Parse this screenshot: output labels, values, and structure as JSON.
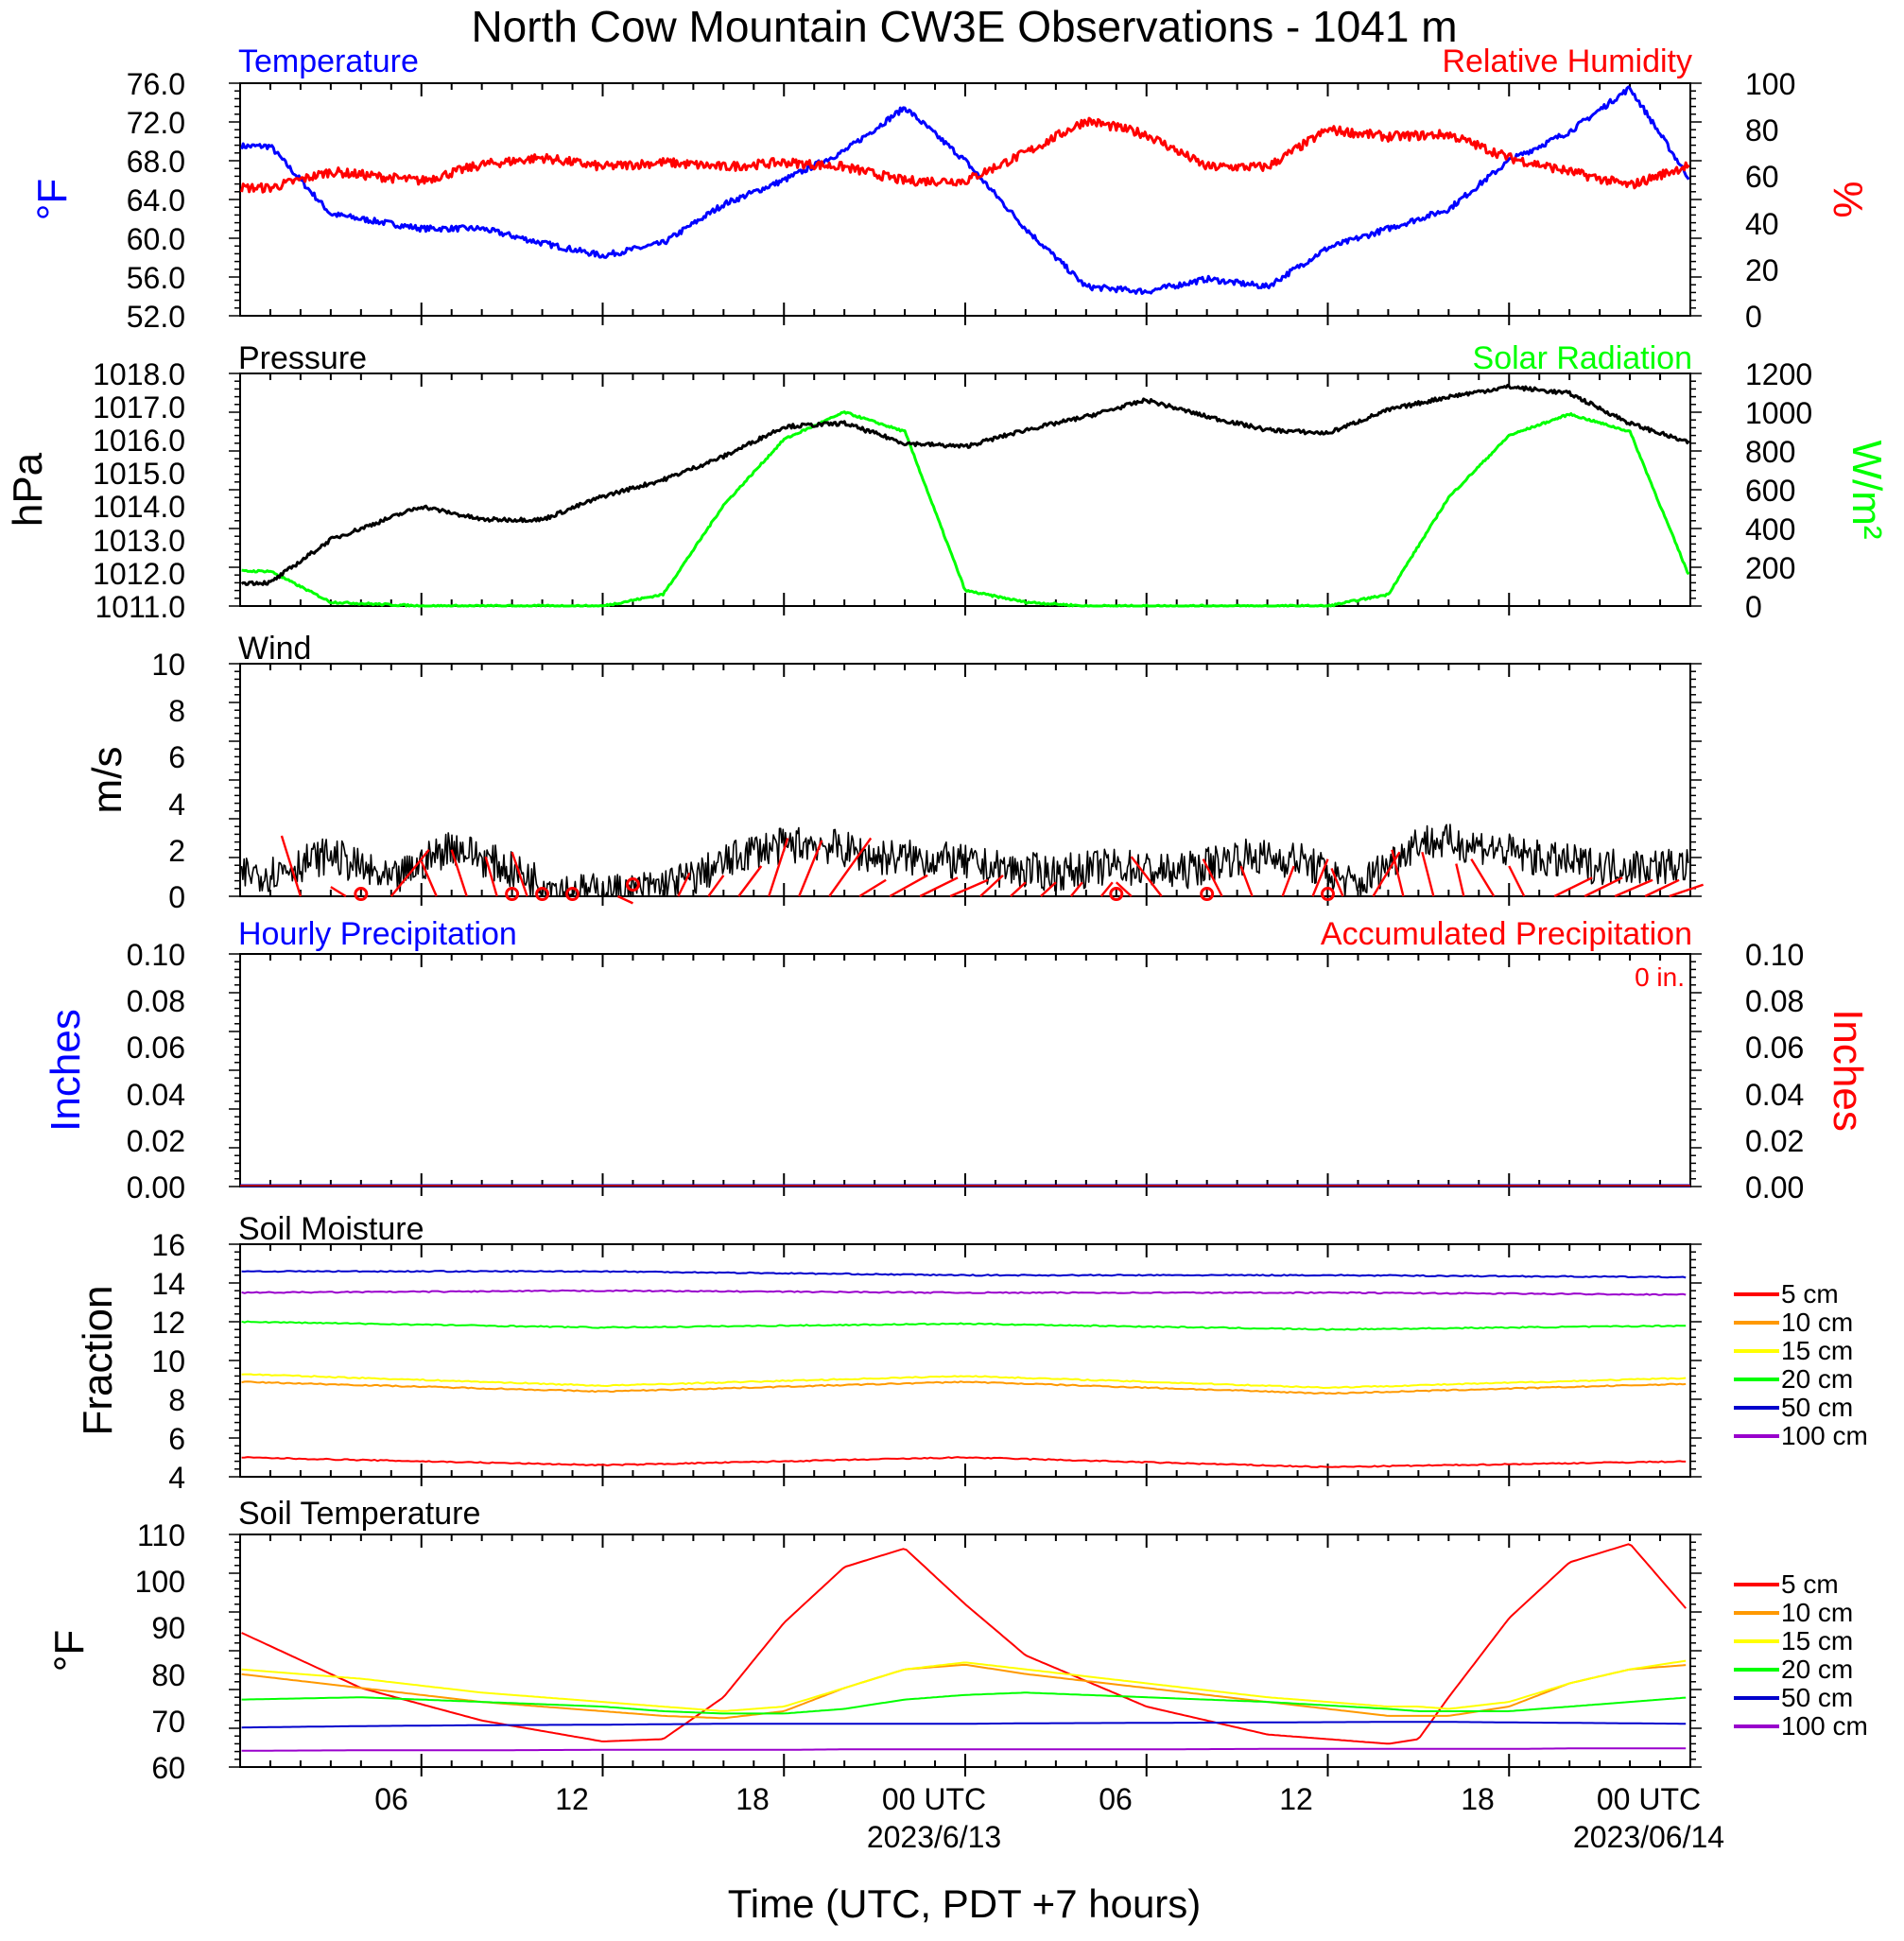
{
  "title": "North Cow Mountain CW3E Observations - 1041 m",
  "x_axis": {
    "label": "Time (UTC, PDT +7 hours)",
    "ticks": [
      "06",
      "12",
      "18",
      "00 UTC",
      "06",
      "12",
      "18",
      "00 UTC"
    ],
    "dates": [
      "2023/6/13",
      "2023/06/14"
    ]
  },
  "colors": {
    "red": "#ff0000",
    "blue": "#0000ff",
    "green": "#00ff00",
    "black": "#000000",
    "orange": "#ff9900",
    "yellow": "#ffff00",
    "darkblue": "#0000cc",
    "purple": "#9900cc"
  },
  "panels": {
    "temp_rh": {
      "left_title": "Temperature",
      "right_title": "Relative Humidity",
      "left_unit": "°F",
      "right_unit": "%",
      "left_ticks": [
        "76.0",
        "72.0",
        "68.0",
        "64.0",
        "60.0",
        "56.0",
        "52.0"
      ],
      "right_ticks": [
        "100",
        "80",
        "60",
        "40",
        "20",
        "0"
      ]
    },
    "pressure_solar": {
      "left_title": "Pressure",
      "right_title": "Solar Radiation",
      "left_unit": "hPa",
      "right_unit": "W/m²",
      "left_ticks": [
        "1018.0",
        "1017.0",
        "1016.0",
        "1015.0",
        "1014.0",
        "1013.0",
        "1012.0",
        "1011.0"
      ],
      "right_ticks": [
        "1200",
        "1000",
        "800",
        "600",
        "400",
        "200",
        "0"
      ]
    },
    "wind": {
      "title": "Wind",
      "unit": "m/s",
      "ticks": [
        "10",
        "8",
        "6",
        "4",
        "2",
        "0"
      ]
    },
    "precip": {
      "left_title": "Hourly Precipitation",
      "right_title": "Accumulated Precipitation",
      "total_label": "0 in.",
      "left_unit": "Inches",
      "right_unit": "Inches",
      "ticks": [
        "0.10",
        "0.08",
        "0.06",
        "0.04",
        "0.02",
        "0.00"
      ]
    },
    "soil_moisture": {
      "title": "Soil Moisture",
      "unit": "Fraction",
      "ticks": [
        "16",
        "14",
        "12",
        "10",
        "8",
        "6",
        "4"
      ],
      "legend": [
        "5 cm",
        "10 cm",
        "15 cm",
        "20 cm",
        "50 cm",
        "100 cm"
      ]
    },
    "soil_temp": {
      "title": "Soil Temperature",
      "unit": "°F",
      "ticks": [
        "110",
        "100",
        "90",
        "80",
        "70",
        "60"
      ],
      "legend": [
        "5 cm",
        "10 cm",
        "15 cm",
        "20 cm",
        "50 cm",
        "100 cm"
      ]
    }
  },
  "chart_data": [
    {
      "type": "line",
      "title": "Temperature / Relative Humidity",
      "x": [
        1,
        3,
        6,
        8,
        10,
        12,
        14,
        16,
        18,
        20,
        22,
        24,
        26,
        28,
        30,
        32,
        34,
        36,
        38,
        40,
        42,
        44,
        46,
        48
      ],
      "series": [
        {
          "name": "Temperature",
          "axis": "left",
          "color": "#0000ff",
          "ylim": [
            52,
            76
          ],
          "values": [
            69.5,
            62.5,
            61,
            61,
            59.5,
            58.2,
            59.5,
            63.5,
            66,
            69,
            73.5,
            68,
            61,
            55,
            54.5,
            55.8,
            55,
            59,
            61,
            63,
            68,
            71,
            75.5,
            66
          ]
        },
        {
          "name": "Relative Humidity",
          "axis": "right",
          "color": "#ff0000",
          "ylim": [
            0,
            100
          ],
          "values": [
            55,
            62,
            58,
            65,
            68,
            64,
            66,
            64,
            66,
            64,
            58,
            58,
            70,
            84,
            78,
            64,
            64,
            80,
            77,
            78,
            68,
            62,
            56,
            65
          ]
        }
      ]
    },
    {
      "type": "line",
      "title": "Pressure / Solar Radiation",
      "x": [
        1,
        3,
        6,
        8,
        10,
        12,
        14,
        16,
        18,
        20,
        22,
        24,
        26,
        28,
        30,
        32,
        34,
        36,
        38,
        40,
        42,
        44,
        46,
        48
      ],
      "series": [
        {
          "name": "Pressure",
          "axis": "left",
          "color": "#000000",
          "ylim": [
            1011,
            1018
          ],
          "values": [
            1011.7,
            1013.0,
            1014.0,
            1013.6,
            1013.6,
            1014.3,
            1014.8,
            1015.5,
            1016.4,
            1016.5,
            1015.9,
            1015.8,
            1016.3,
            1016.7,
            1017.2,
            1016.7,
            1016.3,
            1016.2,
            1016.9,
            1017.3,
            1017.6,
            1017.4,
            1016.5,
            1015.9
          ]
        },
        {
          "name": "Solar Radiation",
          "axis": "right",
          "color": "#00ff00",
          "ylim": [
            0,
            1200
          ],
          "values": [
            180,
            20,
            0,
            0,
            0,
            0,
            60,
            520,
            860,
            1000,
            900,
            80,
            20,
            0,
            0,
            0,
            0,
            0,
            60,
            560,
            880,
            990,
            900,
            140
          ]
        }
      ]
    },
    {
      "type": "line",
      "title": "Wind",
      "ylim": [
        0,
        10
      ],
      "x": [
        1,
        3,
        5,
        7,
        9,
        11,
        13,
        15,
        17,
        19,
        21,
        23,
        25,
        27,
        29,
        31,
        33,
        35,
        37,
        39,
        41,
        43,
        45,
        48
      ],
      "series": [
        {
          "name": "Wind speed",
          "color": "#000000",
          "values": [
            1.0,
            1.8,
            0.6,
            2.2,
            1.1,
            0.2,
            0.2,
            0.8,
            2.0,
            2.3,
            1.7,
            1.6,
            1.2,
            1.0,
            1.3,
            1.0,
            1.7,
            1.6,
            0.4,
            2.4,
            2.2,
            1.6,
            1.3,
            1.3
          ]
        }
      ]
    },
    {
      "type": "line",
      "title": "Hourly / Accumulated Precipitation",
      "ylim": [
        0,
        0.1
      ],
      "x": [
        0,
        48
      ],
      "series": [
        {
          "name": "Hourly Precipitation",
          "color": "#0000ff",
          "values": [
            0,
            0
          ]
        },
        {
          "name": "Accumulated Precipitation",
          "color": "#ff0000",
          "values": [
            0,
            0
          ]
        }
      ]
    },
    {
      "type": "line",
      "title": "Soil Moisture",
      "ylim": [
        4,
        16
      ],
      "x": [
        0,
        12,
        24,
        36,
        48
      ],
      "series": [
        {
          "name": "5 cm",
          "color": "#ff0000",
          "values": [
            5.0,
            4.6,
            5.0,
            4.5,
            4.8
          ]
        },
        {
          "name": "10 cm",
          "color": "#ff9900",
          "values": [
            8.9,
            8.4,
            8.9,
            8.3,
            8.8
          ]
        },
        {
          "name": "15 cm",
          "color": "#ffff00",
          "values": [
            9.3,
            8.7,
            9.2,
            8.6,
            9.1
          ]
        },
        {
          "name": "20 cm",
          "color": "#00ff00",
          "values": [
            12.0,
            11.7,
            11.9,
            11.6,
            11.8
          ]
        },
        {
          "name": "50 cm",
          "color": "#0000cc",
          "values": [
            14.6,
            14.6,
            14.4,
            14.4,
            14.3
          ]
        },
        {
          "name": "100 cm",
          "color": "#9900cc",
          "values": [
            13.5,
            13.6,
            13.5,
            13.5,
            13.4
          ]
        }
      ]
    },
    {
      "type": "line",
      "title": "Soil Temperature",
      "ylim": [
        60,
        110
      ],
      "x": [
        0,
        4,
        8,
        12,
        14,
        16,
        18,
        20,
        22,
        24,
        26,
        30,
        34,
        38,
        39,
        40,
        42,
        44,
        46,
        48
      ],
      "series": [
        {
          "name": "5 cm",
          "color": "#ff0000",
          "values": [
            89,
            77,
            70,
            65.5,
            66,
            75,
            91,
            103,
            107,
            95,
            84,
            73,
            67,
            65,
            66,
            75,
            92,
            104,
            108,
            93
          ]
        },
        {
          "name": "10 cm",
          "color": "#ff9900",
          "values": [
            80,
            77,
            74,
            72,
            71,
            70.5,
            72,
            77,
            81,
            82,
            80,
            77,
            74,
            71,
            71,
            71,
            73,
            78,
            81,
            82
          ]
        },
        {
          "name": "15 cm",
          "color": "#ffff00",
          "values": [
            81,
            79,
            76,
            74,
            73,
            72,
            73,
            77,
            81,
            82.5,
            81,
            78,
            75,
            73,
            73,
            72.5,
            74,
            78,
            81,
            83
          ]
        },
        {
          "name": "20 cm",
          "color": "#00ff00",
          "values": [
            74.5,
            75,
            74,
            73,
            72,
            71.5,
            71.5,
            72.5,
            74.5,
            75.5,
            76,
            75,
            74,
            72.5,
            72,
            72,
            72,
            73,
            74,
            75
          ]
        },
        {
          "name": "50 cm",
          "color": "#0000cc",
          "values": [
            68.5,
            68.8,
            69,
            69.1,
            69.2,
            69.3,
            69.3,
            69.3,
            69.3,
            69.3,
            69.4,
            69.5,
            69.6,
            69.7,
            69.7,
            69.7,
            69.6,
            69.5,
            69.4,
            69.3
          ]
        },
        {
          "name": "100 cm",
          "color": "#9900cc",
          "values": [
            63.5,
            63.6,
            63.6,
            63.7,
            63.7,
            63.7,
            63.7,
            63.8,
            63.8,
            63.8,
            63.8,
            63.8,
            63.9,
            63.9,
            63.9,
            63.9,
            63.9,
            64,
            64,
            64
          ]
        }
      ]
    }
  ]
}
